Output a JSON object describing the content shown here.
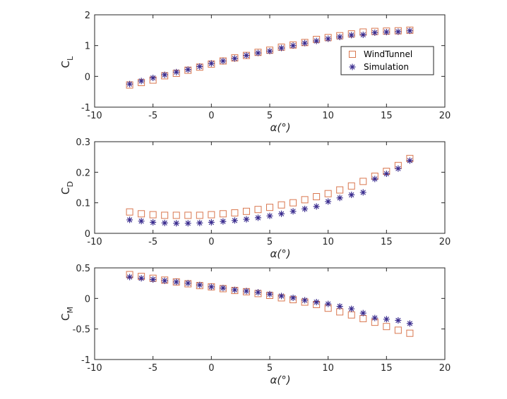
{
  "colors": {
    "wind_tunnel": "#d9774f",
    "simulation": "#3b2d8f",
    "axis": "#262626"
  },
  "legend": {
    "location": "inside-right",
    "entries": [
      {
        "label": "WindTunnel",
        "marker": "square"
      },
      {
        "label": "Simulation",
        "marker": "asterisk"
      }
    ]
  },
  "chart_data": [
    {
      "type": "scatter",
      "ylabel_main": "C",
      "ylabel_sub": "L",
      "xlabel": "α(°)",
      "xlim": [
        -10,
        20
      ],
      "ylim": [
        -1,
        2
      ],
      "xticks": [
        "-10",
        "-5",
        "0",
        "5",
        "10",
        "15",
        "20"
      ],
      "yticks": [
        "-1",
        "0",
        "1",
        "2"
      ],
      "x": [
        -7,
        -6,
        -5,
        -4,
        -3,
        -2,
        -1,
        0,
        1,
        2,
        3,
        4,
        5,
        6,
        7,
        8,
        9,
        10,
        11,
        12,
        13,
        14,
        15,
        16,
        17
      ],
      "series": [
        {
          "name": "WindTunnel",
          "values": [
            -0.28,
            -0.2,
            -0.12,
            0.02,
            0.1,
            0.2,
            0.3,
            0.4,
            0.5,
            0.6,
            0.68,
            0.78,
            0.85,
            0.95,
            1.02,
            1.1,
            1.2,
            1.26,
            1.32,
            1.38,
            1.44,
            1.46,
            1.47,
            1.48,
            1.5
          ]
        },
        {
          "name": "Simulation",
          "values": [
            -0.25,
            -0.15,
            -0.05,
            0.05,
            0.14,
            0.22,
            0.32,
            0.42,
            0.5,
            0.58,
            0.68,
            0.76,
            0.82,
            0.92,
            1.0,
            1.08,
            1.15,
            1.22,
            1.28,
            1.34,
            1.35,
            1.42,
            1.44,
            1.45,
            1.48
          ]
        }
      ]
    },
    {
      "type": "scatter",
      "ylabel_main": "C",
      "ylabel_sub": "D",
      "xlabel": "α(°)",
      "xlim": [
        -10,
        20
      ],
      "ylim": [
        0,
        0.3
      ],
      "xticks": [
        "-10",
        "-5",
        "0",
        "5",
        "10",
        "15",
        "20"
      ],
      "yticks": [
        "0",
        "0.1",
        "0.2",
        "0.3"
      ],
      "x": [
        -7,
        -6,
        -5,
        -4,
        -3,
        -2,
        -1,
        0,
        1,
        2,
        3,
        4,
        5,
        6,
        7,
        8,
        9,
        10,
        11,
        12,
        13,
        14,
        15,
        16,
        17
      ],
      "series": [
        {
          "name": "WindTunnel",
          "values": [
            0.07,
            0.064,
            0.061,
            0.059,
            0.059,
            0.059,
            0.059,
            0.061,
            0.064,
            0.067,
            0.072,
            0.078,
            0.085,
            0.093,
            0.1,
            0.11,
            0.12,
            0.13,
            0.142,
            0.155,
            0.17,
            0.187,
            0.203,
            0.222,
            0.245
          ]
        },
        {
          "name": "Simulation",
          "values": [
            0.044,
            0.04,
            0.036,
            0.034,
            0.033,
            0.033,
            0.034,
            0.036,
            0.039,
            0.042,
            0.046,
            0.051,
            0.057,
            0.064,
            0.072,
            0.08,
            0.088,
            0.104,
            0.116,
            0.126,
            0.134,
            0.178,
            0.195,
            0.212,
            0.238
          ]
        }
      ]
    },
    {
      "type": "scatter",
      "ylabel_main": "C",
      "ylabel_sub": "M",
      "xlabel": "α(°)",
      "xlim": [
        -10,
        20
      ],
      "ylim": [
        -1,
        0.5
      ],
      "xticks": [
        "-10",
        "-5",
        "0",
        "5",
        "10",
        "15",
        "20"
      ],
      "yticks": [
        "-1",
        "-0.5",
        "0",
        "0.5"
      ],
      "x": [
        -7,
        -6,
        -5,
        -4,
        -3,
        -2,
        -1,
        0,
        1,
        2,
        3,
        4,
        5,
        6,
        7,
        8,
        9,
        10,
        11,
        12,
        13,
        14,
        15,
        16,
        17
      ],
      "series": [
        {
          "name": "WindTunnel",
          "values": [
            0.39,
            0.36,
            0.33,
            0.3,
            0.27,
            0.24,
            0.21,
            0.19,
            0.16,
            0.13,
            0.11,
            0.08,
            0.05,
            0.01,
            -0.02,
            -0.06,
            -0.1,
            -0.16,
            -0.22,
            -0.27,
            -0.33,
            -0.39,
            -0.46,
            -0.52,
            -0.57
          ]
        },
        {
          "name": "Simulation",
          "values": [
            0.35,
            0.33,
            0.31,
            0.29,
            0.27,
            0.25,
            0.22,
            0.19,
            0.17,
            0.14,
            0.12,
            0.1,
            0.07,
            0.04,
            0.01,
            -0.03,
            -0.06,
            -0.09,
            -0.13,
            -0.17,
            -0.24,
            -0.32,
            -0.34,
            -0.36,
            -0.41
          ]
        }
      ]
    }
  ]
}
